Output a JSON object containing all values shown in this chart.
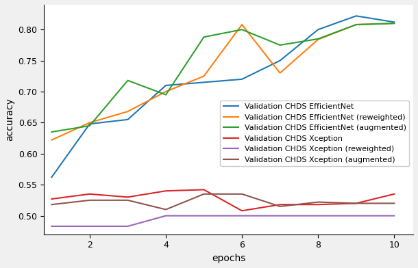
{
  "epochs": [
    1,
    2,
    3,
    4,
    5,
    6,
    7,
    8,
    9,
    10
  ],
  "efficientnet": [
    0.562,
    0.648,
    0.655,
    0.71,
    0.715,
    0.72,
    0.75,
    0.8,
    0.822,
    0.812
  ],
  "efficientnet_reweighted": [
    0.622,
    0.65,
    0.668,
    0.7,
    0.725,
    0.808,
    0.73,
    0.784,
    0.808,
    0.81
  ],
  "efficientnet_augmented": [
    0.635,
    0.645,
    0.718,
    0.695,
    0.788,
    0.8,
    0.775,
    0.785,
    0.808,
    0.81
  ],
  "xception": [
    0.527,
    0.535,
    0.53,
    0.54,
    0.542,
    0.508,
    0.518,
    0.518,
    0.52,
    0.535
  ],
  "xception_reweighted": [
    0.483,
    0.483,
    0.483,
    0.5,
    0.5,
    0.5,
    0.5,
    0.5,
    0.5,
    0.5
  ],
  "xception_augmented": [
    0.518,
    0.525,
    0.525,
    0.51,
    0.535,
    0.535,
    0.515,
    0.522,
    0.52,
    0.52
  ],
  "colors": {
    "efficientnet": "#1f77b4",
    "efficientnet_reweighted": "#ff7f0e",
    "efficientnet_augmented": "#2ca02c",
    "xception": "#d62728",
    "xception_reweighted": "#9467bd",
    "xception_augmented": "#8c564b"
  },
  "labels": {
    "efficientnet": "Validation CHDS EfficientNet",
    "efficientnet_reweighted": "Validation CHDS EfficientNet (reweighted)",
    "efficientnet_augmented": "Validation CHDS EfficientNet (augmented)",
    "xception": "Validation CHDS Xception",
    "xception_reweighted": "Validation CHDS Xception (reweighted)",
    "xception_augmented": "Validation CHDS Xception (augmented)"
  },
  "xlabel": "epochs",
  "ylabel": "accuracy",
  "ylim": [
    0.47,
    0.84
  ],
  "xlim": [
    0.8,
    10.5
  ],
  "yticks": [
    0.5,
    0.55,
    0.6,
    0.65,
    0.7,
    0.75,
    0.8
  ],
  "xticks": [
    2,
    4,
    6,
    8,
    10
  ],
  "fig_facecolor": "#f0f0f0",
  "axes_facecolor": "#ffffff",
  "legend_fontsize": 8,
  "linewidth": 1.5
}
